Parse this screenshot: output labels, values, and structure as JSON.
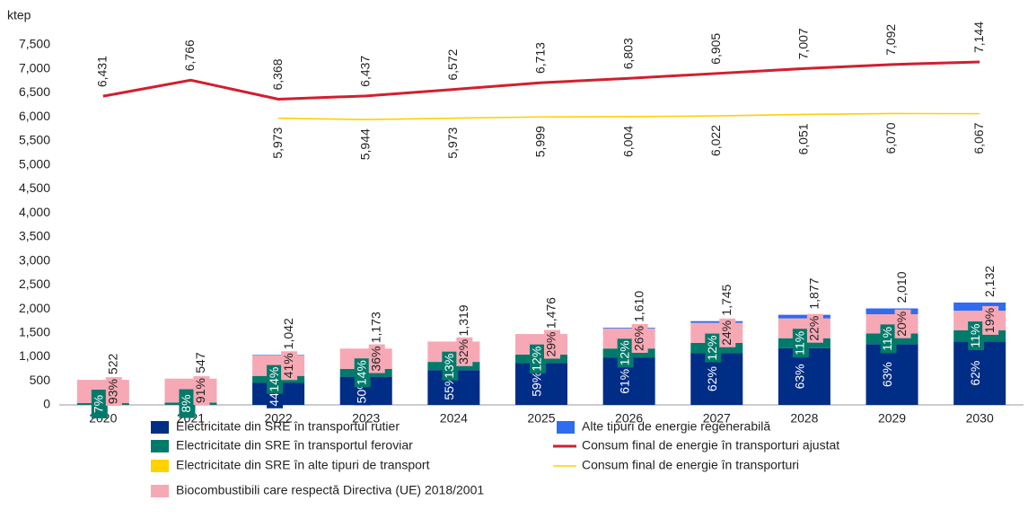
{
  "chart_data": {
    "type": "bar",
    "y_label": "ktep",
    "categories": [
      "2020",
      "2021",
      "2022",
      "2023",
      "2024",
      "2025",
      "2026",
      "2027",
      "2028",
      "2029",
      "2030"
    ],
    "ylim": [
      0,
      7500
    ],
    "yticks": [
      0,
      {
        "value": 500,
        "label": "500"
      },
      {
        "value": 1000,
        "label": "1,000"
      },
      {
        "value": 1500,
        "label": "1,500"
      },
      {
        "value": 2000,
        "label": "2,000"
      },
      {
        "value": 2500,
        "label": "2,500"
      },
      {
        "value": 3000,
        "label": "3,000"
      },
      {
        "value": 3500,
        "label": "3,500"
      },
      {
        "value": 4000,
        "label": "4,000"
      },
      {
        "value": 4500,
        "label": "4,500"
      },
      {
        "value": 5000,
        "label": "5,000"
      },
      {
        "value": 5500,
        "label": "5,500"
      },
      {
        "value": 6000,
        "label": "6,000"
      },
      {
        "value": 6500,
        "label": "6,500"
      },
      {
        "value": 7000,
        "label": "7,000"
      },
      {
        "value": 7500,
        "label": "7,500"
      }
    ],
    "series": [
      {
        "name": "Electricitate din SRE în transportul rutier",
        "color": "#002d86",
        "values": [
          0,
          5,
          458,
          587,
          725,
          871,
          982,
          1082,
          1183,
          1266,
          1322
        ],
        "labels": [
          null,
          null,
          "44%",
          "50%",
          "55%",
          "59%",
          "61%",
          "62%",
          "63%",
          "63%",
          "62%"
        ]
      },
      {
        "name": "Electricitate din SRE în transportul feroviar",
        "color": "#007a6a",
        "values": [
          37,
          44,
          146,
          164,
          171,
          177,
          193,
          209,
          206,
          221,
          235
        ],
        "labels": [
          "7%",
          "8%",
          "14%",
          "14%",
          "13%",
          "12%",
          "12%",
          "12%",
          "11%",
          "11%",
          "11%"
        ]
      },
      {
        "name": "Electricitate din SRE în alte tipuri de transport",
        "color": "#ffd200",
        "values": [
          0,
          0,
          0,
          0,
          0,
          0,
          0,
          0,
          0,
          0,
          0
        ],
        "labels": [
          null,
          null,
          null,
          null,
          null,
          null,
          null,
          null,
          null,
          null,
          null
        ]
      },
      {
        "name": "Biocombustibili care respectă Directiva (UE) 2018/2001",
        "color": "#f6a9b5",
        "values": [
          485,
          498,
          427,
          422,
          422,
          428,
          419,
          419,
          413,
          402,
          405
        ],
        "labels": [
          "93%",
          "91%",
          "41%",
          "36%",
          "32%",
          "29%",
          "26%",
          "24%",
          "22%",
          "20%",
          "19%"
        ]
      },
      {
        "name": "Alte tipuri de energie regenerabilă",
        "color": "#2e6cf0",
        "values": [
          0,
          0,
          11,
          0,
          1,
          0,
          16,
          35,
          75,
          121,
          170
        ],
        "labels": [
          null,
          null,
          null,
          null,
          null,
          null,
          null,
          null,
          null,
          null,
          null
        ]
      }
    ],
    "totals": [
      522,
      547,
      1042,
      1173,
      1319,
      1476,
      1610,
      1745,
      1877,
      2010,
      2132
    ],
    "total_labels": [
      "522",
      "547",
      "1,042",
      "1,173",
      "1,319",
      "1,476",
      "1,610",
      "1,745",
      "1,877",
      "2,010",
      "2,132"
    ],
    "lines": [
      {
        "name": "Consum final de energie în transporturi ajustat",
        "color": "#d0202e",
        "values": [
          6431,
          6766,
          6368,
          6437,
          6572,
          6713,
          6803,
          6905,
          7007,
          7092,
          7144
        ],
        "value_labels": [
          "6,431",
          "6,766",
          "6,368",
          "6,437",
          "6,572",
          "6,713",
          "6,803",
          "6,905",
          "7,007",
          "7,092",
          "7,144"
        ]
      },
      {
        "name": "Consum final de energie în transporturi",
        "color": "#ffd000",
        "values": [
          null,
          null,
          5973,
          5944,
          5973,
          5999,
          6004,
          6022,
          6051,
          6070,
          6067
        ],
        "value_labels": [
          null,
          null,
          "5,973",
          "5,944",
          "5,973",
          "5,999",
          "6,004",
          "6,022",
          "6,051",
          "6,070",
          "6,067"
        ]
      }
    ]
  }
}
